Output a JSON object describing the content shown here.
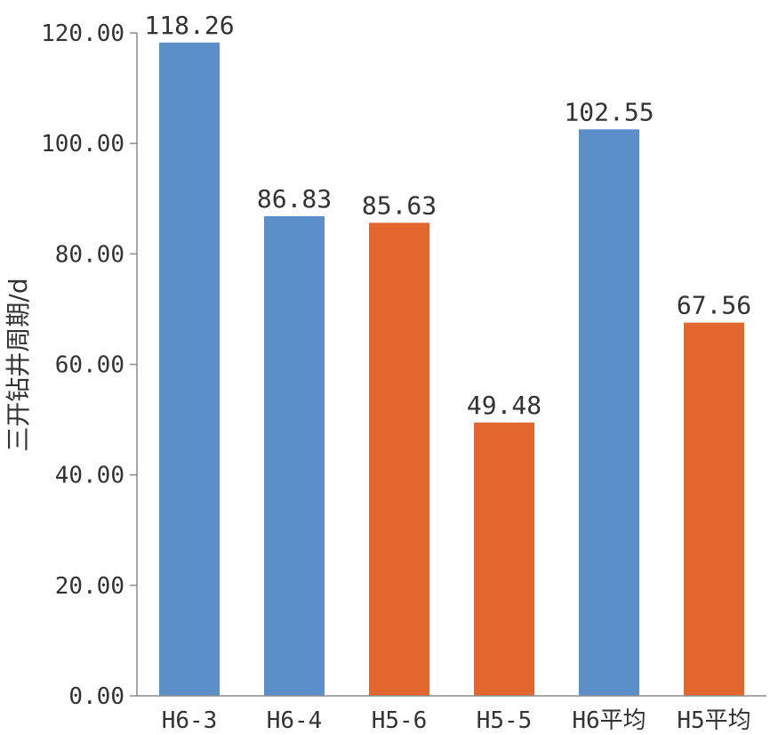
{
  "chart_data": {
    "type": "bar",
    "title": "",
    "xlabel": "",
    "ylabel": "三开钻井周期/d",
    "ylim": [
      0,
      120
    ],
    "yticks": [
      "0.00",
      "20.00",
      "40.00",
      "60.00",
      "80.00",
      "100.00",
      "120.00"
    ],
    "categories": [
      "H6-3",
      "H6-4",
      "H5-6",
      "H5-5",
      "H6平均",
      "H5平均"
    ],
    "values": [
      118.26,
      86.83,
      85.63,
      49.48,
      102.55,
      67.56
    ],
    "value_labels": [
      "118.26",
      "86.83",
      "85.63",
      "49.48",
      "102.55",
      "67.56"
    ],
    "bar_colors": [
      "#5b8fc9",
      "#5b8fc9",
      "#e2672f",
      "#e2672f",
      "#5b8fc9",
      "#e2672f"
    ],
    "grid": false,
    "legend": "none"
  }
}
